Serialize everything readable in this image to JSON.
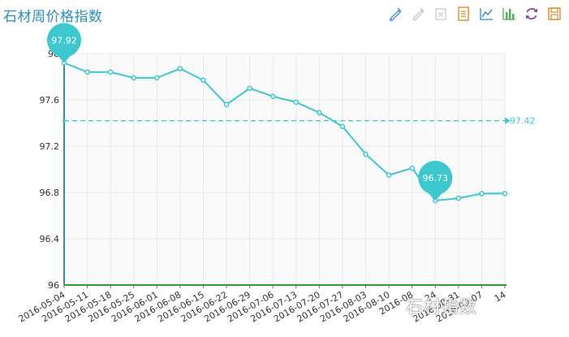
{
  "title": "石材周价格指数",
  "watermark": "石材指数",
  "toolbar": [
    {
      "icon": "data-zoom-icon",
      "color": "#4a90d9"
    },
    {
      "icon": "data-zoom-reset-icon",
      "color": "#c8c8c8"
    },
    {
      "icon": "restore-icon",
      "color": "#c8c8c8"
    },
    {
      "icon": "data-view-icon",
      "color": "#e08a2c"
    },
    {
      "icon": "line-chart-icon",
      "color": "#2a8fbd"
    },
    {
      "icon": "bar-chart-icon",
      "color": "#4caf50"
    },
    {
      "icon": "refresh-icon",
      "color": "#8e44ad"
    },
    {
      "icon": "save-image-icon",
      "color": "#e08a2c"
    }
  ],
  "colors": {
    "line": "#3cc8cc",
    "markLine": "#3cc8cc",
    "yAxis": "#2a8fbd",
    "xAxis": "#2e9e2e",
    "grid": "#e8e8e8",
    "plotBg": "#fafafa"
  },
  "chart_data": {
    "type": "line",
    "categories": [
      "2016-05-04",
      "2016-05-11",
      "2016-05-18",
      "2016-05-25",
      "2016-06-01",
      "2016-06-08",
      "2016-06-15",
      "2016-06-22",
      "2016-06-29",
      "2016-07-06",
      "2016-07-13",
      "2016-07-20",
      "2016-07-27",
      "2016-08-03",
      "2016-08-10",
      "2016-08-17",
      "2016-08-24",
      "2016-08-31",
      "2016-09-07",
      "2016-09-14"
    ],
    "tick_labels": [
      "2016-05-04",
      "2016-05-11",
      "2016-05-18",
      "2016-05-25",
      "2016-06-01",
      "2016-06-08",
      "2016-06-15",
      "2016-06-22",
      "2016-06-29",
      "2016-07-06",
      "2016-07-13",
      "2016-07-20",
      "2016-07-27",
      "2016-08-03",
      "2016-08-10",
      "2016-08",
      "24",
      "2016-08-31",
      "2016-09-07",
      "14"
    ],
    "values": [
      97.92,
      97.84,
      97.84,
      97.79,
      97.79,
      97.87,
      97.77,
      97.56,
      97.7,
      97.63,
      97.58,
      97.49,
      97.37,
      97.13,
      96.95,
      97.01,
      96.73,
      96.75,
      96.79,
      96.79
    ],
    "ylim": [
      96,
      98
    ],
    "yticks": [
      "96",
      "96.4",
      "96.8",
      "97.2",
      "97.6",
      "98"
    ],
    "ytick_values": [
      96,
      96.4,
      96.8,
      97.2,
      97.6,
      98
    ],
    "markPoint": {
      "max": {
        "label": "97.92",
        "index": 0
      },
      "min": {
        "label": "96.73",
        "index": 16
      }
    },
    "markLine": {
      "value": 97.42,
      "label": "97.42"
    },
    "grid": true
  }
}
